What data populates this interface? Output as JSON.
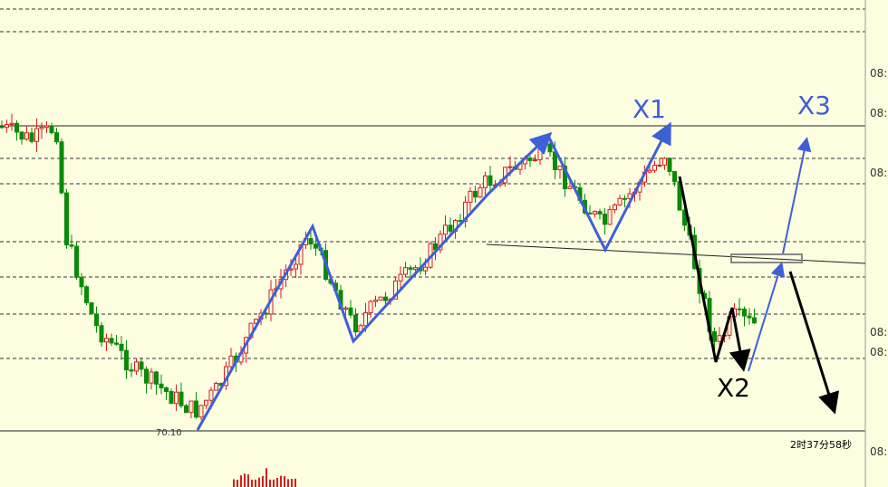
{
  "annotations": {
    "x1": "X1",
    "x2": "X2",
    "x3": "X3"
  },
  "low_label": "70.10",
  "countdown": "2时37分58秒",
  "axis_labels": [
    "08:",
    "08:",
    "08:",
    "08:",
    "08:",
    "08:"
  ]
}
